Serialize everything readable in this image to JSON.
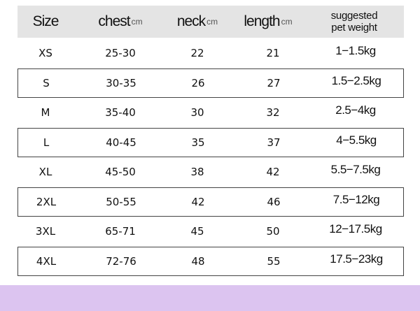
{
  "header": {
    "size": "Size",
    "chest": "chest",
    "neck": "neck",
    "length": "length",
    "unit": "cm",
    "weight_line1": "suggested",
    "weight_line2": "pet weight"
  },
  "rows": [
    {
      "size": "XS",
      "chest": "25-30",
      "neck": "22",
      "length": "21",
      "weight": "1−1.5kg"
    },
    {
      "size": "S",
      "chest": "30-35",
      "neck": "26",
      "length": "27",
      "weight": "1.5−2.5kg"
    },
    {
      "size": "M",
      "chest": "35-40",
      "neck": "30",
      "length": "32",
      "weight": "2.5−4kg"
    },
    {
      "size": "L",
      "chest": "40-45",
      "neck": "35",
      "length": "37",
      "weight": "4−5.5kg"
    },
    {
      "size": "XL",
      "chest": "45-50",
      "neck": "38",
      "length": "42",
      "weight": "5.5−7.5kg"
    },
    {
      "size": "2XL",
      "chest": "50-55",
      "neck": "42",
      "length": "46",
      "weight": "7.5−12kg"
    },
    {
      "size": "3XL",
      "chest": "65-71",
      "neck": "45",
      "length": "50",
      "weight": "12−17.5kg"
    },
    {
      "size": "4XL",
      "chest": "72-76",
      "neck": "48",
      "length": "55",
      "weight": "17.5−23kg"
    }
  ],
  "colors": {
    "header_bg": "#e4e4e4",
    "band": "#dcc4f0",
    "border": "#444444"
  }
}
